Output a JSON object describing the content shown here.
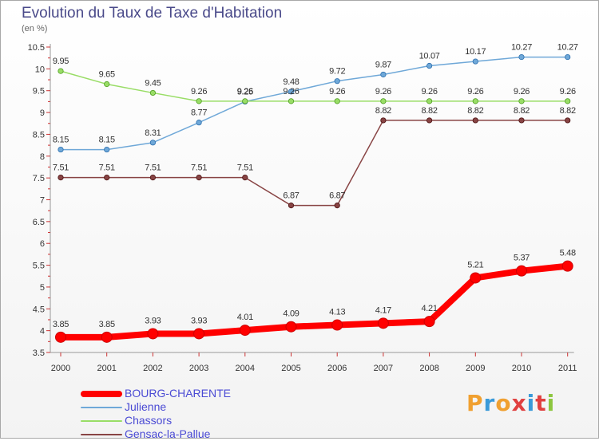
{
  "header": {
    "title": "Evolution du Taux de Taxe d'Habitation",
    "subtitle": "(en %)"
  },
  "logo": {
    "letters": [
      "P",
      "r",
      "o",
      "x",
      "i",
      "t",
      "i"
    ],
    "colors": [
      "#f0a030",
      "#3a9ad9",
      "#f0a030",
      "#e04040",
      "#3a9ad9",
      "#e04040",
      "#8dc63f"
    ]
  },
  "colors": {
    "axis": "#999999",
    "tick_text": "#333333",
    "value_text": "#333333",
    "legend_text": "#4a4ad4"
  },
  "chart_data": {
    "type": "line",
    "title": "Evolution du Taux de Taxe d'Habitation",
    "subtitle": "(en %)",
    "xlabel": "",
    "ylabel": "",
    "categories": [
      "2000",
      "2001",
      "2002",
      "2003",
      "2004",
      "2005",
      "2006",
      "2007",
      "2008",
      "2009",
      "2010",
      "2011"
    ],
    "ylim": [
      3.5,
      10.5
    ],
    "yticks": [
      "3.5",
      "4",
      "4.5",
      "5",
      "5.5",
      "6",
      "6.5",
      "7",
      "7.5",
      "8",
      "8.5",
      "9",
      "9.5",
      "10",
      "10.5"
    ],
    "grid": false,
    "legend_position": "bottom-left",
    "series": [
      {
        "name": "BOURG-CHARENTE",
        "color": "#ff0000",
        "marker_stroke": "#cc0000",
        "weight": "bold",
        "values": [
          3.85,
          3.85,
          3.93,
          3.93,
          4.01,
          4.09,
          4.13,
          4.17,
          4.21,
          5.21,
          5.37,
          5.48
        ],
        "labels": [
          "3.85",
          "3.85",
          "3.93",
          "3.93",
          "4.01",
          "4.09",
          "4.13",
          "4.17",
          "4.21",
          "5.21",
          "5.37",
          "5.48"
        ]
      },
      {
        "name": "Julienne",
        "color": "#6fa8d8",
        "marker_stroke": "#2c6fae",
        "weight": "thin",
        "values": [
          8.15,
          8.15,
          8.31,
          8.77,
          9.25,
          9.48,
          9.72,
          9.87,
          10.07,
          10.17,
          10.27,
          10.27
        ],
        "labels": [
          "8.15",
          "8.15",
          "8.31",
          "8.77",
          "9.25",
          "9.48",
          "9.72",
          "9.87",
          "10.07",
          "10.17",
          "10.27",
          "10.27"
        ]
      },
      {
        "name": "Chassors",
        "color": "#99dd66",
        "marker_stroke": "#4f9e22",
        "weight": "thin",
        "values": [
          9.95,
          9.65,
          9.45,
          9.26,
          9.26,
          9.26,
          9.26,
          9.26,
          9.26,
          9.26,
          9.26,
          9.26
        ],
        "labels": [
          "9.95",
          "9.65",
          "9.45",
          "9.26",
          "9.26",
          "9.26",
          "9.26",
          "9.26",
          "9.26",
          "9.26",
          "9.26",
          "9.26"
        ]
      },
      {
        "name": "Gensac-la-Pallue",
        "color": "#884444",
        "marker_stroke": "#4a1010",
        "weight": "thin",
        "values": [
          7.51,
          7.51,
          7.51,
          7.51,
          7.51,
          6.87,
          6.87,
          8.82,
          8.82,
          8.82,
          8.82,
          8.82
        ],
        "labels": [
          "7.51",
          "7.51",
          "7.51",
          "7.51",
          "7.51",
          "6.87",
          "6.87",
          "8.82",
          "8.82",
          "8.82",
          "8.82",
          "8.82"
        ]
      }
    ]
  }
}
